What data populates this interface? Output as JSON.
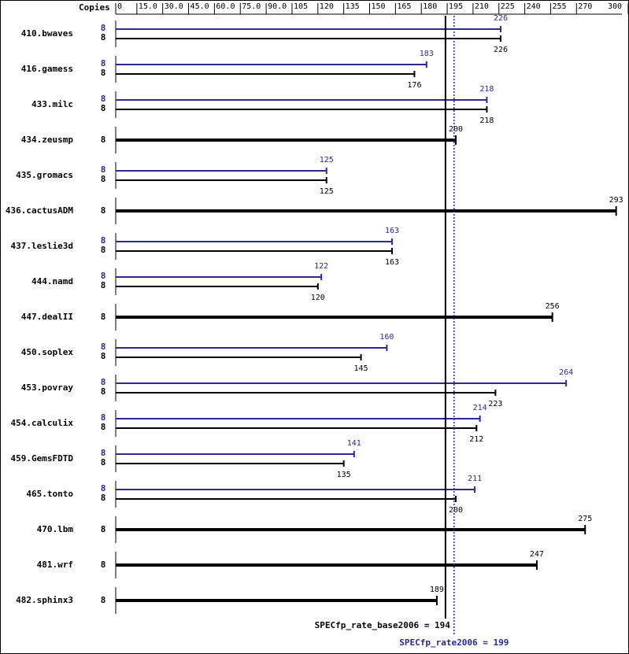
{
  "chart_data": {
    "type": "bar",
    "copies_label": "Copies",
    "categories": [
      "410.bwaves",
      "416.gamess",
      "433.milc",
      "434.zeusmp",
      "435.gromacs",
      "436.cactusADM",
      "437.leslie3d",
      "444.namd",
      "447.dealII",
      "450.soplex",
      "453.povray",
      "454.calculix",
      "459.GemsFDTD",
      "465.tonto",
      "470.lbm",
      "481.wrf",
      "482.sphinx3"
    ],
    "series": [
      {
        "name": "SPECfp_rate2006",
        "color": "#2a2a8c",
        "copies": [
          8,
          8,
          8,
          null,
          8,
          null,
          8,
          8,
          null,
          8,
          8,
          8,
          8,
          8,
          null,
          null,
          null
        ],
        "values": [
          226,
          183,
          218,
          null,
          125,
          null,
          163,
          122,
          null,
          160,
          264,
          214,
          141,
          211,
          null,
          null,
          null
        ]
      },
      {
        "name": "SPECfp_rate_base2006",
        "color": "#000000",
        "copies": [
          8,
          8,
          8,
          8,
          8,
          8,
          8,
          8,
          8,
          8,
          8,
          8,
          8,
          8,
          8,
          8,
          8
        ],
        "values": [
          226,
          176,
          218,
          200,
          125,
          293,
          163,
          120,
          256,
          145,
          223,
          212,
          135,
          200,
          275,
          247,
          189
        ]
      }
    ],
    "reference_lines": [
      {
        "label": "SPECfp_rate_base2006 = 194",
        "value": 194,
        "color": "#000000",
        "style": "solid"
      },
      {
        "label": "SPECfp_rate2006 = 199",
        "value": 199,
        "color": "#2a2a8c",
        "style": "dotted"
      }
    ],
    "xlim": [
      0,
      300
    ],
    "xticks": [
      0,
      {
        "value": 15,
        "label": "15.0"
      },
      {
        "value": 30,
        "label": "30.0"
      },
      {
        "value": 45,
        "label": "45.0"
      },
      {
        "value": 60,
        "label": "60.0"
      },
      {
        "value": 75,
        "label": "75.0"
      },
      {
        "value": 90,
        "label": "90.0"
      },
      105,
      120,
      135,
      150,
      165,
      180,
      195,
      210,
      225,
      240,
      255,
      270,
      300
    ]
  }
}
